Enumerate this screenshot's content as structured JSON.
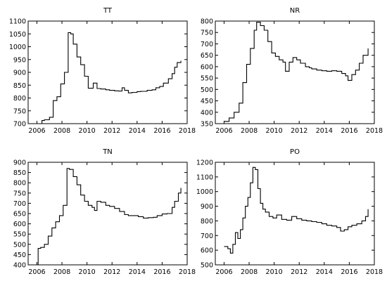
{
  "chart_data": [
    {
      "type": "line",
      "title": "TT",
      "xlim": [
        2005.3,
        2018
      ],
      "ylim": [
        700,
        1100
      ],
      "xticks": [
        2006,
        2008,
        2010,
        2012,
        2014,
        2016,
        2018
      ],
      "yticks": [
        700,
        750,
        800,
        850,
        900,
        950,
        1000,
        1050,
        1100
      ],
      "grid": false,
      "series": [
        {
          "x": [
            2006.0,
            2006.4,
            2006.6,
            2007.0,
            2007.3,
            2007.6,
            2007.9,
            2008.2,
            2008.5,
            2008.7,
            2008.9,
            2009.2,
            2009.5,
            2009.8,
            2010.1,
            2010.5,
            2010.8,
            2011.1,
            2011.5,
            2011.8,
            2012.2,
            2012.5,
            2012.8,
            2013.0,
            2013.3,
            2013.6,
            2014.0,
            2014.3,
            2014.8,
            2015.2,
            2015.5,
            2015.8,
            2016.1,
            2016.5,
            2016.8,
            2017.0,
            2017.2,
            2017.5
          ],
          "y": [
            700,
            712,
            715,
            725,
            790,
            805,
            855,
            900,
            1055,
            1050,
            1010,
            960,
            930,
            885,
            838,
            858,
            837,
            835,
            832,
            830,
            828,
            827,
            840,
            830,
            820,
            822,
            825,
            826,
            830,
            832,
            840,
            845,
            858,
            875,
            895,
            920,
            938,
            945
          ]
        }
      ]
    },
    {
      "type": "line",
      "title": "NR",
      "xlim": [
        2005.3,
        2018
      ],
      "ylim": [
        350,
        800
      ],
      "xticks": [
        2006,
        2008,
        2010,
        2012,
        2014,
        2016,
        2018
      ],
      "yticks": [
        350,
        400,
        450,
        500,
        550,
        600,
        650,
        700,
        750,
        800
      ],
      "grid": false,
      "series": [
        {
          "x": [
            2006.0,
            2006.4,
            2006.8,
            2007.2,
            2007.5,
            2007.8,
            2008.1,
            2008.4,
            2008.6,
            2008.9,
            2009.2,
            2009.5,
            2009.8,
            2010.1,
            2010.4,
            2010.7,
            2010.9,
            2011.2,
            2011.5,
            2011.8,
            2012.1,
            2012.5,
            2012.8,
            2013.0,
            2013.4,
            2013.8,
            2014.2,
            2014.6,
            2015.0,
            2015.4,
            2015.7,
            2015.9,
            2016.2,
            2016.5,
            2016.8,
            2017.1,
            2017.5
          ],
          "y": [
            360,
            375,
            400,
            440,
            530,
            610,
            680,
            760,
            795,
            780,
            760,
            710,
            660,
            645,
            630,
            620,
            580,
            620,
            640,
            630,
            615,
            600,
            595,
            590,
            585,
            582,
            580,
            582,
            580,
            570,
            560,
            540,
            565,
            585,
            615,
            650,
            680
          ]
        }
      ]
    },
    {
      "type": "line",
      "title": "TN",
      "xlim": [
        2005.3,
        2018
      ],
      "ylim": [
        400,
        900
      ],
      "xticks": [
        2006,
        2008,
        2010,
        2012,
        2014,
        2016,
        2018
      ],
      "yticks": [
        400,
        450,
        500,
        550,
        600,
        650,
        700,
        750,
        800,
        850,
        900
      ],
      "grid": false,
      "series": [
        {
          "x": [
            2006.0,
            2006.1,
            2006.3,
            2006.6,
            2006.9,
            2007.2,
            2007.5,
            2007.8,
            2008.1,
            2008.4,
            2008.6,
            2008.9,
            2009.2,
            2009.5,
            2009.8,
            2010.1,
            2010.4,
            2010.6,
            2010.8,
            2011.1,
            2011.5,
            2011.8,
            2012.2,
            2012.6,
            2013.0,
            2013.3,
            2013.7,
            2014.1,
            2014.5,
            2014.9,
            2015.3,
            2015.6,
            2016.0,
            2016.4,
            2016.8,
            2017.0,
            2017.3,
            2017.5
          ],
          "y": [
            400,
            480,
            485,
            500,
            540,
            580,
            610,
            640,
            690,
            870,
            865,
            830,
            790,
            740,
            710,
            690,
            680,
            665,
            710,
            705,
            690,
            685,
            675,
            660,
            645,
            640,
            640,
            635,
            628,
            630,
            632,
            640,
            648,
            650,
            680,
            710,
            750,
            775
          ]
        }
      ]
    },
    {
      "type": "line",
      "title": "PO",
      "xlim": [
        2005.3,
        2018
      ],
      "ylim": [
        500,
        1200
      ],
      "xticks": [
        2006,
        2008,
        2010,
        2012,
        2014,
        2016,
        2018
      ],
      "yticks": [
        500,
        600,
        700,
        800,
        900,
        1000,
        1100,
        1200
      ],
      "grid": false,
      "series": [
        {
          "x": [
            2006.0,
            2006.3,
            2006.5,
            2006.7,
            2006.9,
            2007.1,
            2007.3,
            2007.5,
            2007.7,
            2007.9,
            2008.1,
            2008.3,
            2008.5,
            2008.7,
            2008.9,
            2009.1,
            2009.3,
            2009.6,
            2009.9,
            2010.2,
            2010.6,
            2011.0,
            2011.4,
            2011.8,
            2012.2,
            2012.6,
            2013.0,
            2013.4,
            2013.8,
            2014.2,
            2014.6,
            2015.0,
            2015.3,
            2015.6,
            2015.9,
            2016.2,
            2016.6,
            2017.0,
            2017.3,
            2017.5
          ],
          "y": [
            625,
            610,
            580,
            640,
            720,
            680,
            740,
            820,
            900,
            960,
            1060,
            1165,
            1150,
            1020,
            920,
            880,
            860,
            830,
            820,
            840,
            810,
            805,
            830,
            815,
            805,
            800,
            795,
            790,
            780,
            770,
            765,
            755,
            730,
            740,
            760,
            770,
            780,
            800,
            830,
            880
          ]
        }
      ]
    }
  ]
}
